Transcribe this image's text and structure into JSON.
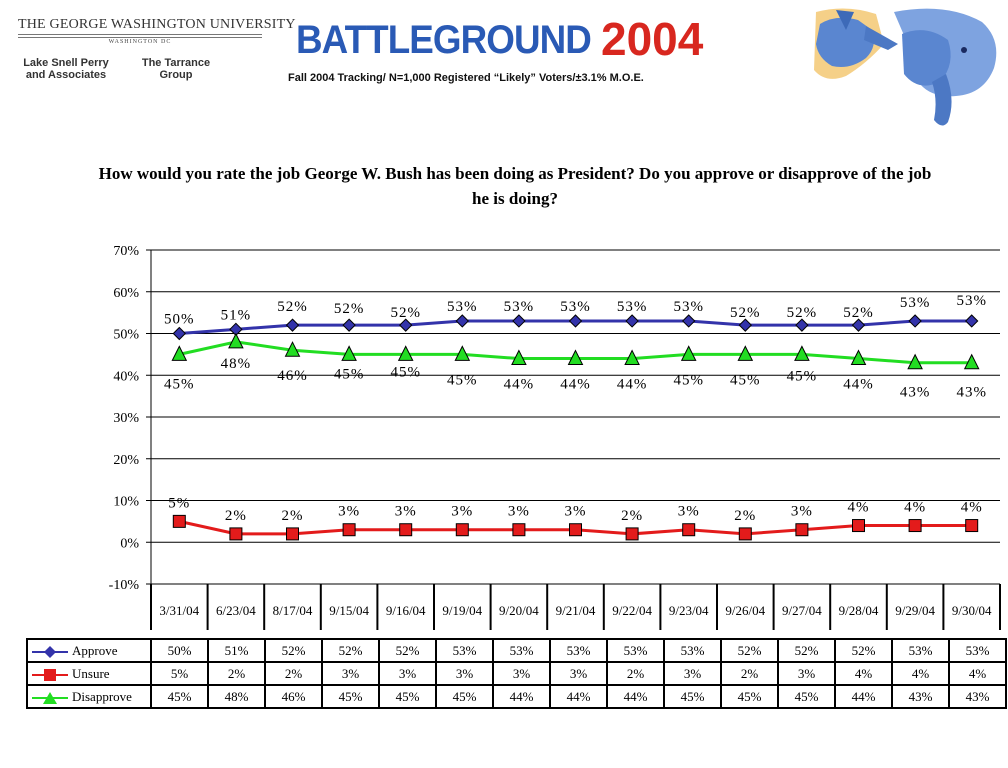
{
  "header": {
    "university": "THE GEORGE WASHINGTON UNIVERSITY",
    "university_sub": "WASHINGTON DC",
    "firm_left": "Lake Snell Perry and Associates",
    "firm_right": "The Tarrance Group",
    "logo_word": "BATTLEGROUND",
    "logo_year": "2004",
    "subtitle": "Fall 2004 Tracking/ N=1,000 Registered “Likely” Voters/±3.1% M.O.E."
  },
  "question": "How would you rate the job George W. Bush has been doing as President? Do you approve or disapprove of the job he is doing?",
  "colors": {
    "approve": "#3333aa",
    "unsure": "#e31b1b",
    "disapprove": "#22dd22"
  },
  "chart_data": {
    "type": "line",
    "title": "How would you rate the job George W. Bush has been doing as President? Do you approve or disapprove of the job he is doing?",
    "categories": [
      "3/31/04",
      "6/23/04",
      "8/17/04",
      "9/15/04",
      "9/16/04",
      "9/19/04",
      "9/20/04",
      "9/21/04",
      "9/22/04",
      "9/23/04",
      "9/26/04",
      "9/27/04",
      "9/28/04",
      "9/29/04",
      "9/30/04"
    ],
    "ylim": [
      -10,
      70
    ],
    "yticks": [
      -10,
      0,
      10,
      20,
      30,
      40,
      50,
      60,
      70
    ],
    "ytick_labels": [
      "-10%",
      "0%",
      "10%",
      "20%",
      "30%",
      "40%",
      "50%",
      "60%",
      "70%"
    ],
    "grid": true,
    "legend": "data table below chart",
    "series": [
      {
        "name": "Approve",
        "marker": "diamond",
        "values": [
          50,
          51,
          52,
          52,
          52,
          53,
          53,
          53,
          53,
          53,
          52,
          52,
          52,
          53,
          53
        ]
      },
      {
        "name": "Unsure",
        "marker": "square",
        "values": [
          5,
          2,
          2,
          3,
          3,
          3,
          3,
          3,
          2,
          3,
          2,
          3,
          4,
          4,
          4
        ]
      },
      {
        "name": "Disapprove",
        "marker": "triangle",
        "values": [
          45,
          48,
          46,
          45,
          45,
          45,
          44,
          44,
          44,
          45,
          45,
          45,
          44,
          43,
          43
        ]
      }
    ]
  }
}
